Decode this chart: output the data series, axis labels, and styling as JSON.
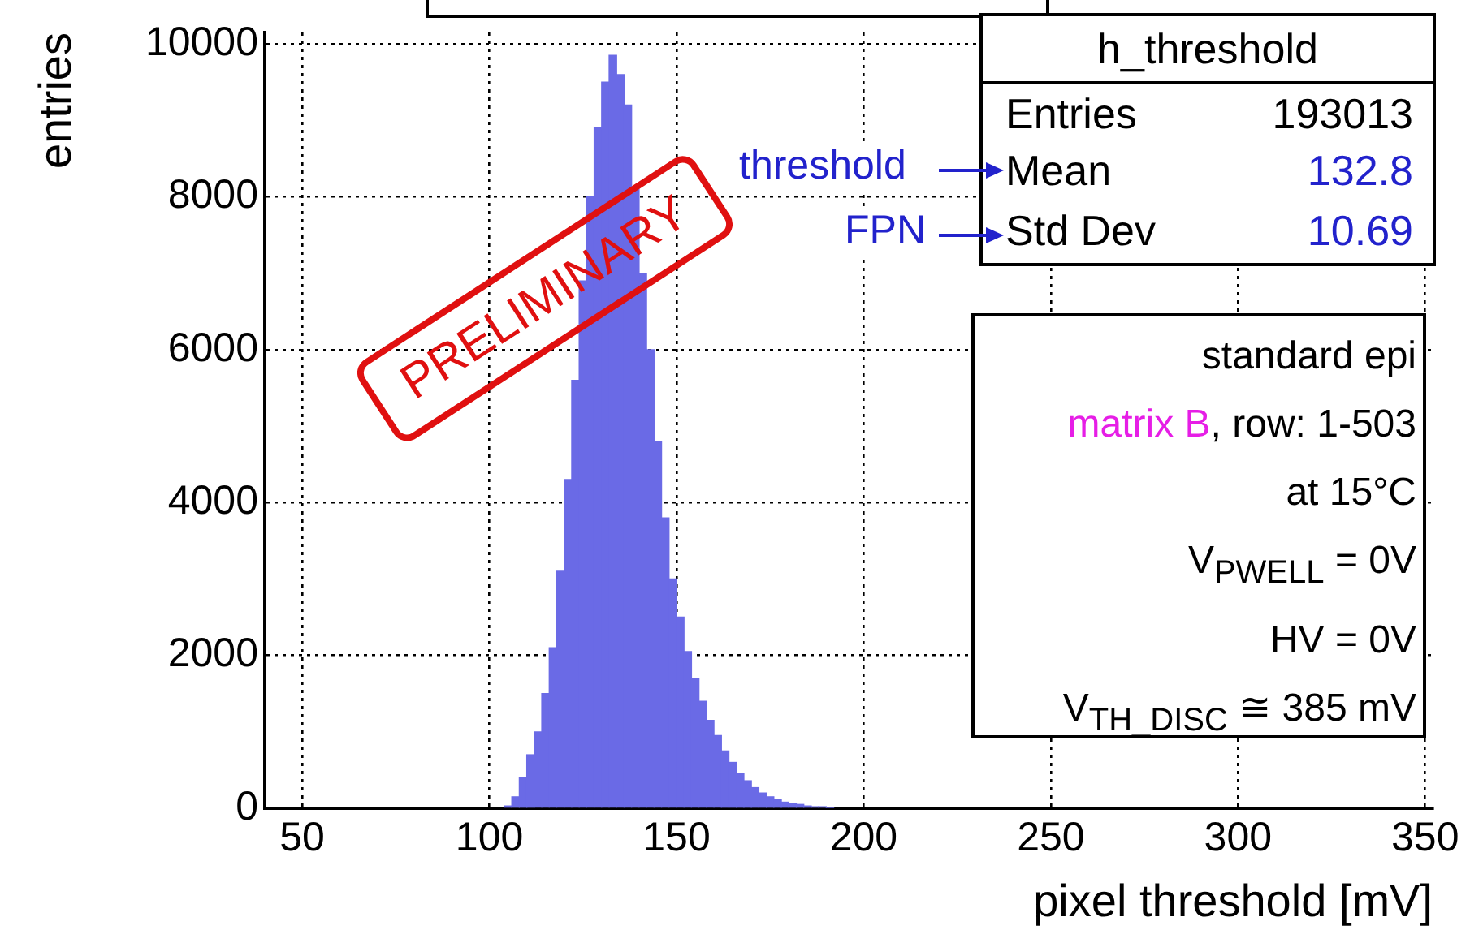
{
  "chart_data": {
    "type": "histogram",
    "xlabel": "pixel threshold [mV]",
    "ylabel": "entries",
    "bins": [
      104,
      106,
      108,
      110,
      112,
      114,
      116,
      118,
      120,
      122,
      124,
      126,
      128,
      130,
      132,
      134,
      136,
      138,
      140,
      142,
      144,
      146,
      148,
      150,
      152,
      154,
      156,
      158,
      160,
      162,
      164,
      166,
      168,
      170,
      172,
      174,
      176,
      178,
      180,
      182,
      184,
      186,
      188,
      190,
      192
    ],
    "values": [
      30,
      150,
      400,
      700,
      1000,
      1500,
      2100,
      3100,
      4300,
      5600,
      6900,
      8000,
      8900,
      9500,
      9850,
      9600,
      9200,
      8100,
      7000,
      6000,
      4800,
      3800,
      3000,
      2500,
      2050,
      1700,
      1400,
      1150,
      950,
      750,
      600,
      460,
      360,
      270,
      200,
      150,
      110,
      80,
      60,
      50,
      30,
      20,
      20,
      10
    ],
    "color": "#6a6ae6",
    "xlim": [
      40,
      352
    ],
    "xticks": [
      50,
      100,
      150,
      200,
      250,
      300,
      350
    ],
    "ylim": [
      0,
      10150
    ],
    "yticks": [
      0,
      2000,
      4000,
      6000,
      8000,
      10000
    ],
    "grid": true,
    "legend": false,
    "annotations": [
      "h_threshold",
      "Entries",
      "193013",
      "Mean",
      "132.8",
      "Std Dev",
      "10.69",
      "threshold",
      "FPN",
      "standard epi",
      "matrix B",
      ", row: 1-503",
      "at 15°C",
      "V$_{PWELL}$ = 0V",
      "HV = 0V",
      "V$_{TH_DISC}$ ≅ 385 mV",
      "PRELIMINARY"
    ]
  }
}
